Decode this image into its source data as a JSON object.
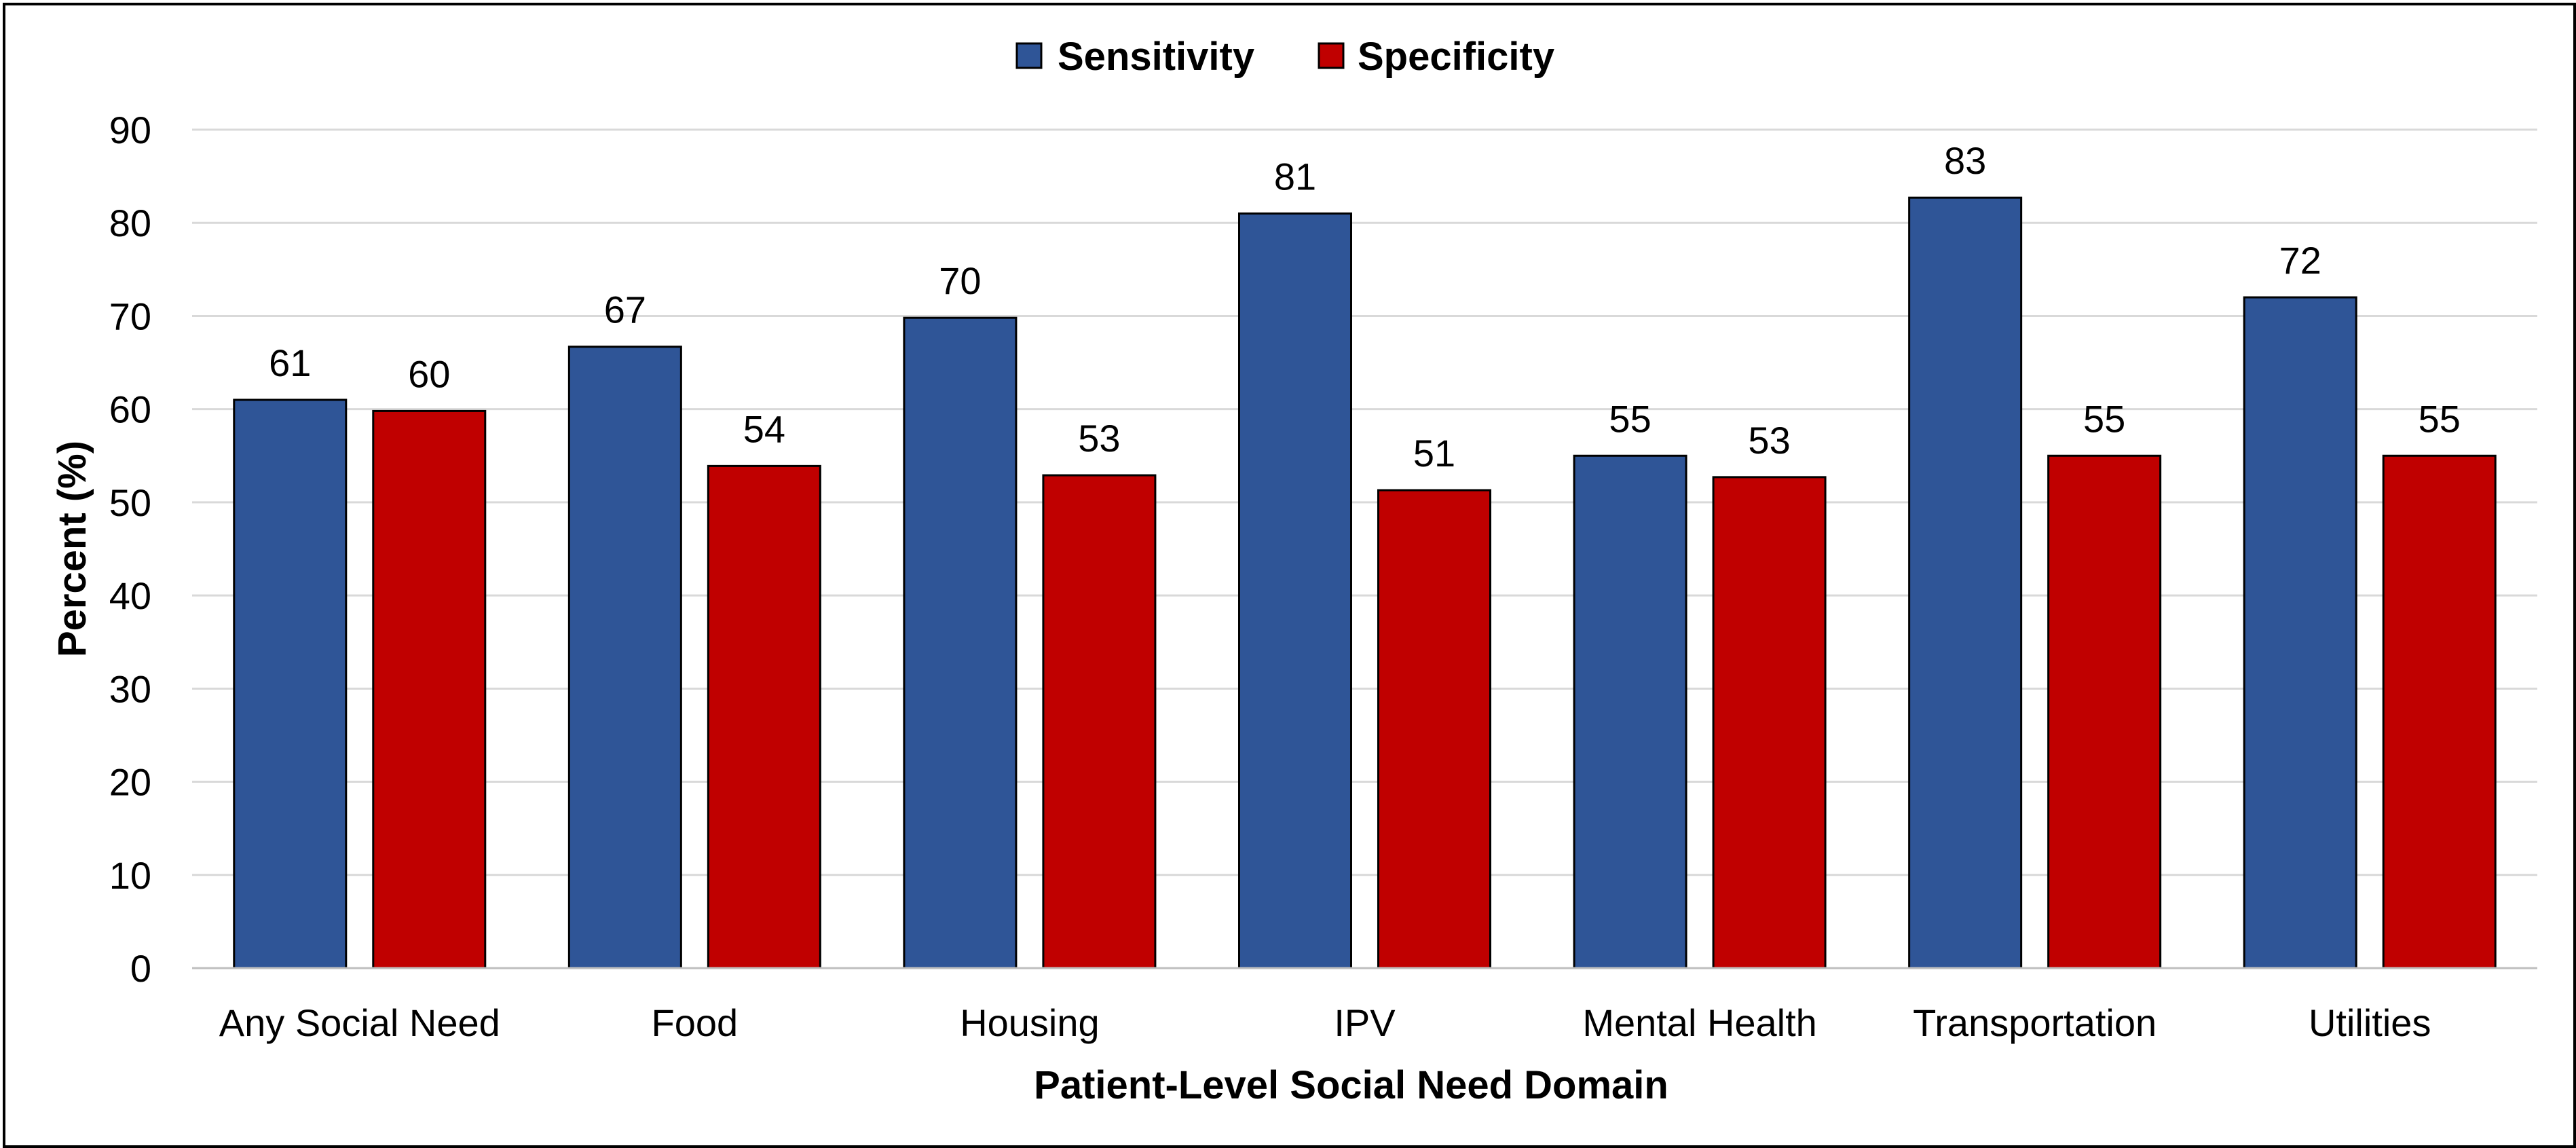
{
  "chart_data": {
    "type": "bar",
    "title": "",
    "xlabel": "Patient-Level Social Need Domain",
    "ylabel": "Percent (%)",
    "ylim": [
      0,
      90
    ],
    "yticks": [
      0,
      10,
      20,
      30,
      40,
      50,
      60,
      70,
      80,
      90
    ],
    "grid": true,
    "legend_position": "top-center",
    "categories": [
      "Any Social Need",
      "Food",
      "Housing",
      "IPV",
      "Mental Health",
      "Transportation",
      "Utilities"
    ],
    "series": [
      {
        "name": "Sensitivity",
        "color": "#2F5597",
        "values": [
          61,
          66.7,
          69.8,
          81,
          55,
          82.7,
          72
        ],
        "labels": [
          "61",
          "67",
          "70",
          "81",
          "55",
          "83",
          "72"
        ]
      },
      {
        "name": "Specificity",
        "color": "#C00000",
        "values": [
          59.8,
          53.9,
          52.9,
          51.3,
          52.7,
          55,
          55
        ],
        "labels": [
          "60",
          "54",
          "53",
          "51",
          "53",
          "55",
          "55"
        ]
      }
    ]
  }
}
